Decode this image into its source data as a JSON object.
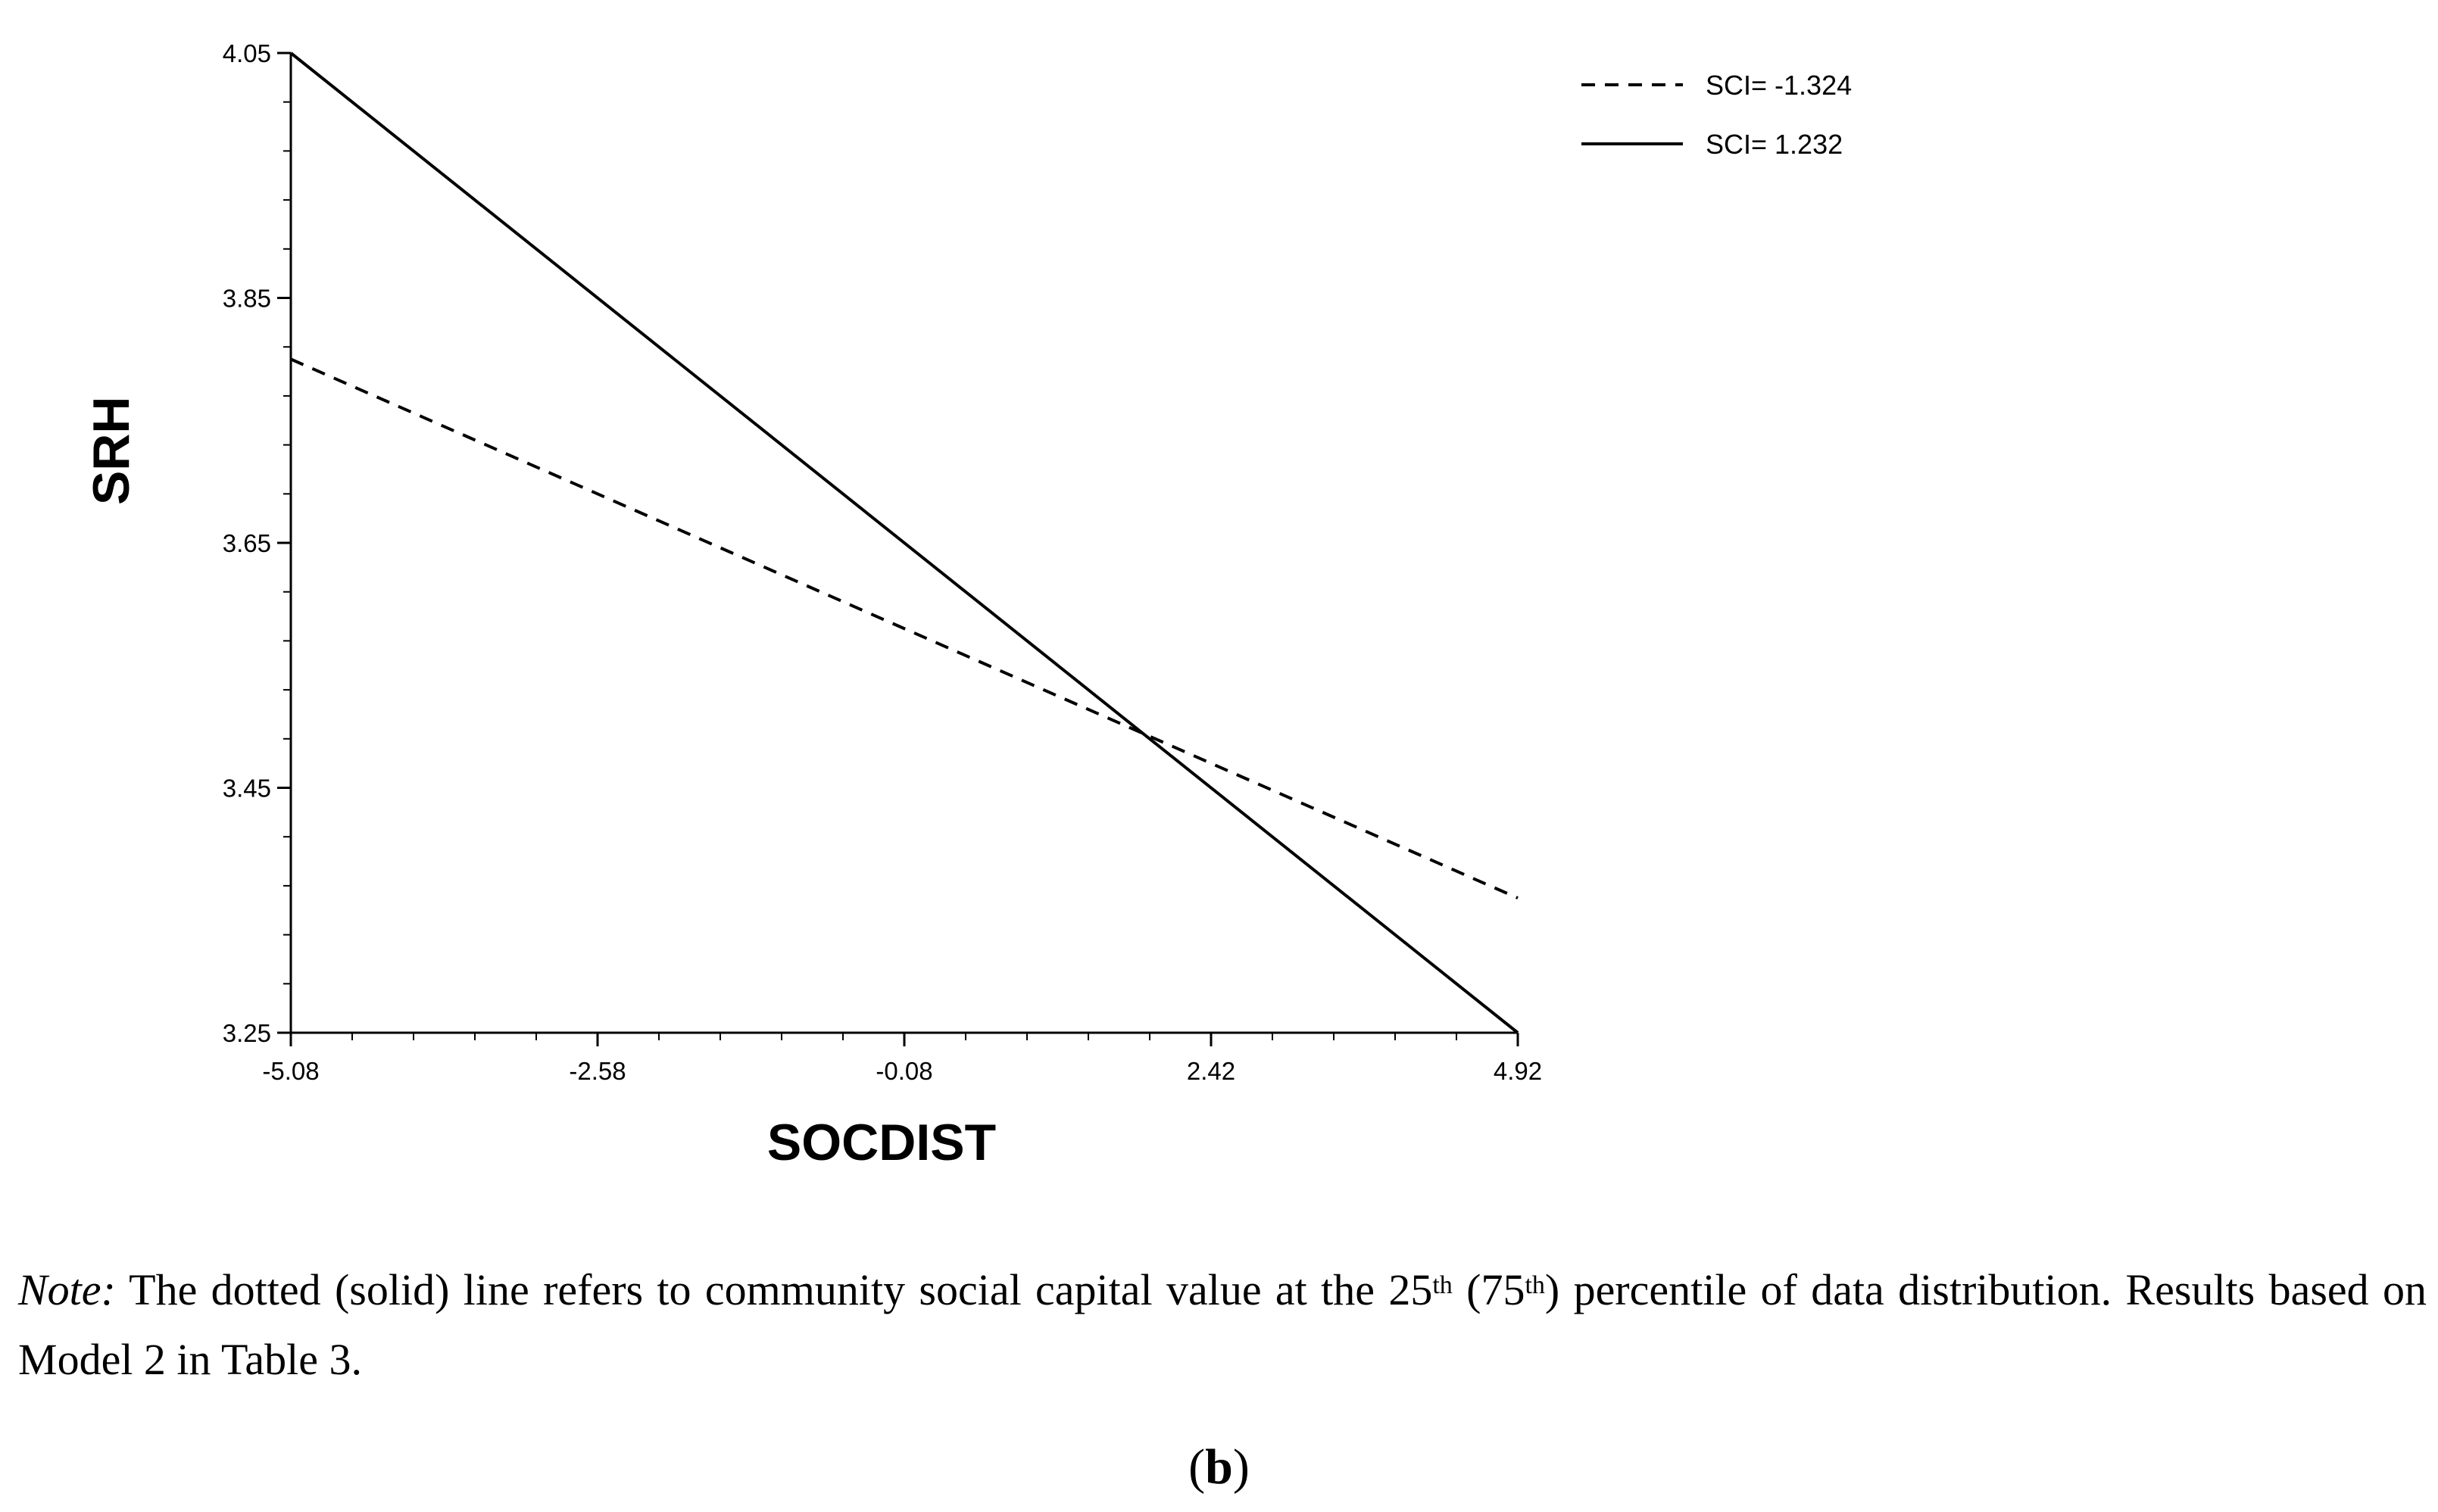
{
  "chart_data": {
    "type": "line",
    "xlabel": "SOCDIST",
    "ylabel": "SRH",
    "xlim": [
      -5.08,
      4.92
    ],
    "ylim": [
      3.25,
      4.05
    ],
    "xticks": [
      "-5.08",
      "-2.58",
      "-0.08",
      "2.42",
      "4.92"
    ],
    "yticks": [
      "3.25",
      "3.45",
      "3.65",
      "3.85",
      "4.05"
    ],
    "legend_position": "top-right",
    "grid": false,
    "series": [
      {
        "name": "SCI= -1.324",
        "style": "dashed",
        "x": [
          -5.08,
          4.92
        ],
        "y": [
          3.8,
          3.36
        ]
      },
      {
        "name": "SCI= 1.232",
        "style": "solid",
        "x": [
          -5.08,
          4.92
        ],
        "y": [
          4.05,
          3.25
        ]
      }
    ]
  },
  "note": {
    "label": "Note:",
    "part1": " The dotted (solid) line refers to community social capital value at the 25",
    "sup1": "th",
    "part2": " (75",
    "sup2": "th",
    "part3": ") percentile of data distribution. Results based on Model 2 in Table 3."
  },
  "panel": {
    "open": "(",
    "letter": "b",
    "close": ")"
  }
}
